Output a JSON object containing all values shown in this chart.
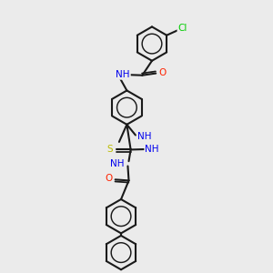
{
  "bg_color": "#ebebeb",
  "line_color": "#1a1a1a",
  "bond_width": 1.5,
  "cl_color": "#00cc00",
  "o_color": "#ff2200",
  "n_color": "#0000ee",
  "s_color": "#bbbb00",
  "figsize": [
    3.0,
    3.0
  ],
  "dpi": 100,
  "xlim": [
    0,
    10
  ],
  "ylim": [
    0,
    14
  ]
}
